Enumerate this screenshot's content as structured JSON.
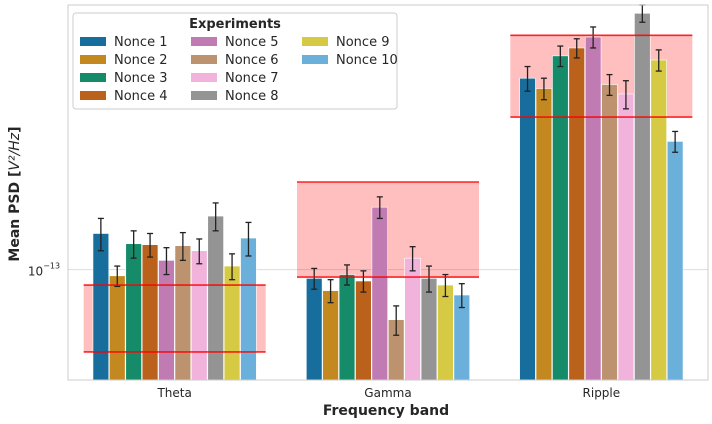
{
  "chart_data": {
    "type": "bar",
    "xlabel": "Frequency band",
    "ylabel": "Mean PSD [V²/Hz]",
    "ylabel_parts": {
      "prefix": "Mean PSD [",
      "unit": "V²/Hz",
      "suffix": "]"
    },
    "yscale": "log",
    "ylim": [
      4e-14,
      9e-13
    ],
    "yticks": [
      {
        "value": 1e-13,
        "base": "10",
        "exponent": "−13"
      }
    ],
    "grid": "horizontal",
    "legend": {
      "title": "Experiments",
      "placement": "top-left",
      "columns": 3
    },
    "categories": [
      "Theta",
      "Gamma",
      "Ripple"
    ],
    "series": [
      {
        "name": "Nonce 1",
        "color": "#176d9c",
        "values": [
          1.35e-13,
          9.3e-14,
          4.9e-13
        ],
        "err": [
          1.8e-14,
          8e-15,
          5e-14
        ]
      },
      {
        "name": "Nonce 2",
        "color": "#c38820",
        "values": [
          9.5e-14,
          8.4e-14,
          4.5e-13
        ],
        "err": [
          8e-15,
          8e-15,
          4e-14
        ]
      },
      {
        "name": "Nonce 3",
        "color": "#158b6a",
        "values": [
          1.24e-13,
          9.6e-14,
          5.9e-13
        ],
        "err": [
          1.4e-14,
          8e-15,
          5e-14
        ]
      },
      {
        "name": "Nonce 4",
        "color": "#ba611b",
        "values": [
          1.23e-13,
          9.1e-14,
          6.3e-13
        ],
        "err": [
          1.2e-14,
          8e-15,
          5e-14
        ]
      },
      {
        "name": "Nonce 5",
        "color": "#c17bb3",
        "values": [
          1.08e-13,
          1.68e-13,
          6.9e-13
        ],
        "err": [
          1.2e-14,
          1.5e-14,
          6e-14
        ]
      },
      {
        "name": "Nonce 6",
        "color": "#bd926e",
        "values": [
          1.22e-13,
          6.6e-14,
          4.65e-13
        ],
        "err": [
          1.4e-14,
          8e-15,
          4e-14
        ]
      },
      {
        "name": "Nonce 7",
        "color": "#f1b3dc",
        "values": [
          1.17e-13,
          1.1e-13,
          4.3e-13
        ],
        "err": [
          1.2e-14,
          1.1e-14,
          5e-14
        ]
      },
      {
        "name": "Nonce 8",
        "color": "#949494",
        "values": [
          1.56e-13,
          9.3e-14,
          8.4e-13
        ],
        "err": [
          1.8e-14,
          1e-14,
          6e-14
        ]
      },
      {
        "name": "Nonce 9",
        "color": "#d6c944",
        "values": [
          1.03e-13,
          8.8e-14,
          5.7e-13
        ],
        "err": [
          1.1e-14,
          8e-15,
          5e-14
        ]
      },
      {
        "name": "Nonce 10",
        "color": "#6ab0da",
        "values": [
          1.3e-13,
          8.1e-14,
          2.9e-13
        ],
        "err": [
          1.8e-14,
          8e-15,
          2.5e-14
        ]
      }
    ],
    "bands": [
      {
        "category": "Theta",
        "low": 5.05e-14,
        "high": 8.8e-14,
        "color": "#ff0000"
      },
      {
        "category": "Gamma",
        "low": 9.4e-14,
        "high": 2.07e-13,
        "color": "#ff0000"
      },
      {
        "category": "Ripple",
        "low": 3.55e-13,
        "high": 7e-13,
        "color": "#ff0000"
      }
    ]
  }
}
